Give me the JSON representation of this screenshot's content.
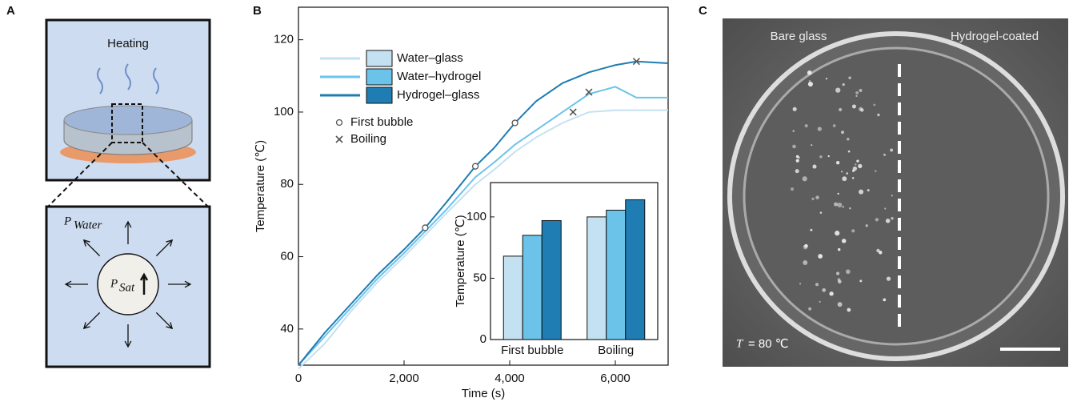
{
  "panel_labels": [
    "A",
    "B",
    "C"
  ],
  "panel_a": {
    "heating_label": "Heating",
    "p_water": {
      "symbol": "P",
      "subscript": "Water"
    },
    "p_sat": {
      "symbol": "P",
      "subscript": "Sat"
    }
  },
  "chart_data": [
    {
      "type": "line",
      "x_label": "Time (s)",
      "y_label": "Temperature (℃)",
      "x": [
        0,
        500,
        1000,
        1500,
        2000,
        2400,
        2800,
        3350,
        3700,
        4100,
        4500,
        5000,
        5500,
        6000,
        6400,
        7000
      ],
      "xlim": [
        0,
        7000
      ],
      "xticks": [
        0,
        {
          "value": 2000,
          "label": "2,000"
        },
        {
          "value": 4000,
          "label": "4,000"
        },
        {
          "value": 6000,
          "label": "6,000"
        }
      ],
      "ylim": [
        30,
        129
      ],
      "yticks": [
        40,
        60,
        80,
        100,
        120
      ],
      "grid": false,
      "series": [
        {
          "name": "Water–glass",
          "color": "#c4e1f1",
          "values": [
            29,
            36,
            45,
            53,
            60,
            66,
            72,
            80,
            84,
            89,
            93,
            97,
            100,
            100.5,
            100.5,
            100.5
          ]
        },
        {
          "name": "Water–hydrogel",
          "color": "#6cc3ea",
          "values": [
            30,
            38,
            46,
            54,
            61,
            67,
            73,
            82,
            86,
            91,
            95,
            100,
            105,
            107,
            104,
            104
          ]
        },
        {
          "name": "Hydrogel–glass",
          "color": "#1f7db3",
          "values": [
            30,
            39,
            47,
            55,
            62,
            68,
            75,
            85,
            90,
            97,
            103,
            108,
            111,
            113,
            114,
            113.5
          ]
        }
      ],
      "markers": [
        {
          "name": "First bubble",
          "marker": "circle",
          "x": [
            2400,
            3350,
            4100
          ],
          "values": [
            68,
            85,
            97
          ]
        },
        {
          "name": "Boiling",
          "marker": "cross",
          "x": [
            5200,
            5500,
            6400
          ],
          "values": [
            100,
            105.5,
            114
          ]
        }
      ]
    },
    {
      "type": "bar",
      "y_label": "Temperature (℃)",
      "categories": [
        "First bubble",
        "Boiling"
      ],
      "ylim": [
        0,
        128
      ],
      "yticks": [
        0,
        50,
        100
      ],
      "series": [
        {
          "name": "Water–glass",
          "color": "#c4e1f1",
          "values": [
            68,
            100
          ]
        },
        {
          "name": "Water–hydrogel",
          "color": "#6cc3ea",
          "values": [
            85,
            105.5
          ]
        },
        {
          "name": "Hydrogel–glass",
          "color": "#1f7db3",
          "values": [
            97,
            114
          ]
        }
      ]
    }
  ],
  "panel_c": {
    "left_label": "Bare glass",
    "right_label": "Hydrogel-coated",
    "temperature_note": {
      "symbol": "T",
      "text": "= 80 ℃"
    }
  }
}
